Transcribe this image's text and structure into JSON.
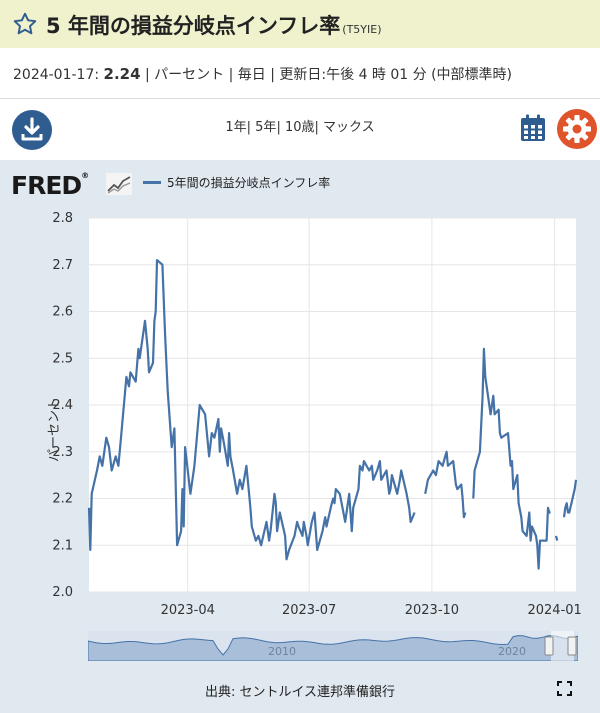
{
  "header": {
    "title": "5 年間の損益分岐点インフレ率",
    "series_id": "(T5YIE)"
  },
  "meta": {
    "date": "2024-01-17:",
    "value": "2.24",
    "rest": "| パーセント | 毎日 | 更新日:午後 4 時 01 分 (中部標準時)"
  },
  "range_links": [
    "1年",
    "5年",
    "10歳",
    "マックス"
  ],
  "chart_data": {
    "type": "line",
    "title": "",
    "ylabel": "パーセント",
    "ylim": [
      2.0,
      2.8
    ],
    "y_ticks": [
      "2.0",
      "2.1",
      "2.2",
      "2.3",
      "2.4",
      "2.5",
      "2.6",
      "2.7",
      "2.8"
    ],
    "x_ticks": [
      {
        "label": "2023-04",
        "date": "2023-04-01"
      },
      {
        "label": "2023-07",
        "date": "2023-07-01"
      },
      {
        "label": "2023-10",
        "date": "2023-10-01"
      },
      {
        "label": "2024-01",
        "date": "2024-01-01"
      }
    ],
    "xlim": [
      "2023-01-17",
      "2024-01-17"
    ],
    "grid": true,
    "legend_position": "top-left",
    "series": [
      {
        "name": "5年間の損益分岐点インフレ率",
        "color": "#4572a7",
        "points": [
          [
            "2023-01-17",
            2.18
          ],
          [
            "2023-01-18",
            2.09
          ],
          [
            "2023-01-19",
            2.21
          ],
          [
            "2023-01-23",
            2.26
          ],
          [
            "2023-01-25",
            2.29
          ],
          [
            "2023-01-27",
            2.27
          ],
          [
            "2023-01-30",
            2.33
          ],
          [
            "2023-02-01",
            2.31
          ],
          [
            "2023-02-03",
            2.26
          ],
          [
            "2023-02-06",
            2.29
          ],
          [
            "2023-02-08",
            2.27
          ],
          [
            "2023-02-10",
            2.33
          ],
          [
            "2023-02-14",
            2.46
          ],
          [
            "2023-02-16",
            2.44
          ],
          [
            "2023-02-17",
            2.47
          ],
          [
            "2023-02-21",
            2.45
          ],
          [
            "2023-02-23",
            2.52
          ],
          [
            "2023-02-24",
            2.5
          ],
          [
            "2023-02-28",
            2.58
          ],
          [
            "2023-03-02",
            2.52
          ],
          [
            "2023-03-03",
            2.47
          ],
          [
            "2023-03-06",
            2.49
          ],
          [
            "2023-03-07",
            2.58
          ],
          [
            "2023-03-08",
            2.6
          ],
          [
            "2023-03-09",
            2.71
          ],
          [
            "2023-03-13",
            2.7
          ],
          [
            "2023-03-15",
            2.55
          ],
          [
            "2023-03-17",
            2.43
          ],
          [
            "2023-03-20",
            2.31
          ],
          [
            "2023-03-22",
            2.35
          ],
          [
            "2023-03-24",
            2.1
          ],
          [
            "2023-03-27",
            2.13
          ],
          [
            "2023-03-28",
            2.22
          ],
          [
            "2023-03-29",
            2.14
          ],
          [
            "2023-03-30",
            2.31
          ],
          [
            "2023-04-03",
            2.21
          ],
          [
            "2023-04-05",
            2.25
          ],
          [
            "2023-04-06",
            2.27
          ],
          [
            "2023-04-10",
            2.4
          ],
          [
            "2023-04-12",
            2.39
          ],
          [
            "2023-04-14",
            2.38
          ],
          [
            "2023-04-17",
            2.29
          ],
          [
            "2023-04-19",
            2.34
          ],
          [
            "2023-04-21",
            2.33
          ],
          [
            "2023-04-24",
            2.37
          ],
          [
            "2023-04-25",
            2.3
          ],
          [
            "2023-04-26",
            2.35
          ],
          [
            "2023-04-28",
            2.32
          ],
          [
            "2023-05-01",
            2.27
          ],
          [
            "2023-05-02",
            2.34
          ],
          [
            "2023-05-03",
            2.29
          ],
          [
            "2023-05-05",
            2.26
          ],
          [
            "2023-05-08",
            2.21
          ],
          [
            "2023-05-10",
            2.24
          ],
          [
            "2023-05-12",
            2.22
          ],
          [
            "2023-05-15",
            2.27
          ],
          [
            "2023-05-17",
            2.21
          ],
          [
            "2023-05-18",
            2.18
          ],
          [
            "2023-05-19",
            2.14
          ],
          [
            "2023-05-22",
            2.11
          ],
          [
            "2023-05-24",
            2.12
          ],
          [
            "2023-05-26",
            2.1
          ],
          [
            "2023-05-30",
            2.15
          ],
          [
            "2023-06-01",
            2.11
          ],
          [
            "2023-06-02",
            2.13
          ],
          [
            "2023-06-05",
            2.21
          ],
          [
            "2023-06-06",
            2.19
          ],
          [
            "2023-06-07",
            2.13
          ],
          [
            "2023-06-09",
            2.17
          ],
          [
            "2023-06-13",
            2.12
          ],
          [
            "2023-06-14",
            2.07
          ],
          [
            "2023-06-16",
            2.09
          ],
          [
            "2023-06-20",
            2.12
          ],
          [
            "2023-06-22",
            2.15
          ],
          [
            "2023-06-23",
            2.14
          ],
          [
            "2023-06-26",
            2.12
          ],
          [
            "2023-06-27",
            2.15
          ],
          [
            "2023-06-29",
            2.12
          ],
          [
            "2023-06-30",
            2.1
          ],
          [
            "2023-07-03",
            2.15
          ],
          [
            "2023-07-05",
            2.17
          ],
          [
            "2023-07-07",
            2.09
          ],
          [
            "2023-07-11",
            2.13
          ],
          [
            "2023-07-13",
            2.16
          ],
          [
            "2023-07-14",
            2.14
          ],
          [
            "2023-07-18",
            2.19
          ],
          [
            "2023-07-19",
            2.2
          ],
          [
            "2023-07-20",
            2.19
          ],
          [
            "2023-07-21",
            2.22
          ],
          [
            "2023-07-24",
            2.21
          ],
          [
            "2023-07-26",
            2.18
          ],
          [
            "2023-07-28",
            2.15
          ],
          [
            "2023-07-31",
            2.21
          ],
          [
            "2023-08-02",
            2.13
          ],
          [
            "2023-08-03",
            2.18
          ],
          [
            "2023-08-07",
            2.22
          ],
          [
            "2023-08-08",
            2.27
          ],
          [
            "2023-08-10",
            2.26
          ],
          [
            "2023-08-11",
            2.28
          ],
          [
            "2023-08-15",
            2.26
          ],
          [
            "2023-08-17",
            2.27
          ],
          [
            "2023-08-18",
            2.24
          ],
          [
            "2023-08-21",
            2.26
          ],
          [
            "2023-08-23",
            2.28
          ],
          [
            "2023-08-24",
            2.24
          ],
          [
            "2023-08-28",
            2.26
          ],
          [
            "2023-08-30",
            2.21
          ],
          [
            "2023-08-31",
            2.22
          ],
          [
            "2023-09-01",
            2.25
          ],
          [
            "2023-09-05",
            2.21
          ],
          [
            "2023-09-07",
            2.24
          ],
          [
            "2023-09-08",
            2.26
          ],
          [
            "2023-09-12",
            2.21
          ],
          [
            "2023-09-14",
            2.18
          ],
          [
            "2023-09-15",
            2.15
          ],
          [
            "2023-09-18",
            2.17
          ],
          [
            "2023-09-20",
            null
          ],
          [
            "2023-09-26",
            2.21
          ],
          [
            "2023-09-28",
            2.24
          ],
          [
            "2023-10-02",
            2.26
          ],
          [
            "2023-10-04",
            2.25
          ],
          [
            "2023-10-06",
            2.28
          ],
          [
            "2023-10-09",
            2.27
          ],
          [
            "2023-10-11",
            2.29
          ],
          [
            "2023-10-12",
            2.3
          ],
          [
            "2023-10-13",
            2.27
          ],
          [
            "2023-10-17",
            2.28
          ],
          [
            "2023-10-19",
            2.23
          ],
          [
            "2023-10-20",
            2.22
          ],
          [
            "2023-10-23",
            2.23
          ],
          [
            "2023-10-24",
            2.2
          ],
          [
            "2023-10-25",
            2.16
          ],
          [
            "2023-10-26",
            2.17
          ],
          [
            "2023-10-27",
            null
          ],
          [
            "2023-11-01",
            2.2
          ],
          [
            "2023-11-02",
            2.26
          ],
          [
            "2023-11-06",
            2.3
          ],
          [
            "2023-11-08",
            2.42
          ],
          [
            "2023-11-09",
            2.52
          ],
          [
            "2023-11-10",
            2.46
          ],
          [
            "2023-11-14",
            2.38
          ],
          [
            "2023-11-16",
            2.42
          ],
          [
            "2023-11-17",
            2.38
          ],
          [
            "2023-11-20",
            2.39
          ],
          [
            "2023-11-21",
            2.34
          ],
          [
            "2023-11-22",
            2.33
          ],
          [
            "2023-11-27",
            2.34
          ],
          [
            "2023-11-29",
            2.27
          ],
          [
            "2023-11-30",
            2.28
          ],
          [
            "2023-12-01",
            2.22
          ],
          [
            "2023-12-04",
            2.25
          ],
          [
            "2023-12-05",
            2.19
          ],
          [
            "2023-12-07",
            2.16
          ],
          [
            "2023-12-08",
            2.13
          ],
          [
            "2023-12-11",
            2.12
          ],
          [
            "2023-12-13",
            2.17
          ],
          [
            "2023-12-14",
            2.11
          ],
          [
            "2023-12-15",
            2.14
          ],
          [
            "2023-12-18",
            2.12
          ],
          [
            "2023-12-19",
            2.1
          ],
          [
            "2023-12-20",
            2.05
          ],
          [
            "2023-12-21",
            2.11
          ],
          [
            "2023-12-22",
            2.11
          ],
          [
            "2023-12-26",
            2.11
          ],
          [
            "2023-12-27",
            2.18
          ],
          [
            "2023-12-28",
            2.17
          ],
          [
            "2023-12-29",
            2.17
          ],
          [
            "2024-01-01",
            null
          ],
          [
            "2024-01-02",
            2.12
          ],
          [
            "2024-01-03",
            2.11
          ],
          [
            "2024-01-04",
            null
          ],
          [
            "2024-01-08",
            2.16
          ],
          [
            "2024-01-09",
            2.18
          ],
          [
            "2024-01-10",
            2.19
          ],
          [
            "2024-01-11",
            2.17
          ],
          [
            "2024-01-12",
            2.17
          ],
          [
            "2024-01-16",
            2.22
          ],
          [
            "2024-01-17",
            2.24
          ]
        ]
      }
    ],
    "navigator_ticks": [
      "2010",
      "2020"
    ]
  },
  "footer": {
    "source": "出典: セントルイス連邦準備銀行"
  },
  "colors": {
    "title_bar": "#f0f2ce",
    "accent_blue": "#2f5d8f",
    "gear_orange": "#e0542c",
    "series": "#4572a7",
    "panel": "#e1e9f0"
  },
  "icons": {
    "favorite": "star-icon",
    "download": "download-icon",
    "calendar": "calendar-icon",
    "settings": "gear-icon",
    "fullscreen": "fullscreen-icon"
  }
}
